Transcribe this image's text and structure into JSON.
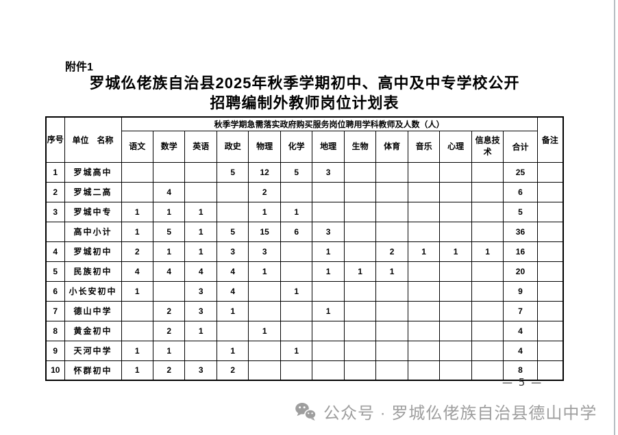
{
  "page": {
    "attachment_label": "附件1",
    "title_line1": "罗城仫佬族自治县2025年秋季学期初中、高中及中专学校公开",
    "title_line2": "招聘编制外教师岗位计划表",
    "page_number": "— 5 —"
  },
  "table": {
    "seq_header": "序号",
    "unit_header": "单位　名称",
    "group_header": "秋季学期急需落实政府购买服务岗位聘用学科教师及人数（人）",
    "subject_headers": [
      "语文",
      "数学",
      "英语",
      "政史",
      "物理",
      "化学",
      "地理",
      "生物",
      "体育",
      "音乐",
      "心理",
      "信息技术"
    ],
    "total_header": "合计",
    "remark_header": "备注",
    "rows": [
      {
        "seq": "1",
        "unit": "罗城高中",
        "values": [
          "",
          "",
          "",
          "5",
          "12",
          "5",
          "3",
          "",
          "",
          "",
          "",
          ""
        ],
        "total": "25",
        "remark": ""
      },
      {
        "seq": "2",
        "unit": "罗城二高",
        "values": [
          "",
          "4",
          "",
          "",
          "2",
          "",
          "",
          "",
          "",
          "",
          "",
          ""
        ],
        "total": "6",
        "remark": ""
      },
      {
        "seq": "3",
        "unit": "罗城中专",
        "values": [
          "1",
          "1",
          "1",
          "",
          "1",
          "1",
          "",
          "",
          "",
          "",
          "",
          ""
        ],
        "total": "5",
        "remark": ""
      },
      {
        "seq": "",
        "unit": "高中小计",
        "values": [
          "1",
          "5",
          "1",
          "5",
          "15",
          "6",
          "3",
          "",
          "",
          "",
          "",
          ""
        ],
        "total": "36",
        "remark": ""
      },
      {
        "seq": "4",
        "unit": "罗城初中",
        "values": [
          "2",
          "1",
          "1",
          "3",
          "3",
          "",
          "1",
          "",
          "2",
          "1",
          "1",
          "1"
        ],
        "total": "16",
        "remark": ""
      },
      {
        "seq": "5",
        "unit": "民族初中",
        "values": [
          "4",
          "4",
          "4",
          "4",
          "1",
          "",
          "1",
          "1",
          "1",
          "",
          "",
          ""
        ],
        "total": "20",
        "remark": ""
      },
      {
        "seq": "6",
        "unit": "小长安初中",
        "values": [
          "1",
          "",
          "3",
          "4",
          "",
          "1",
          "",
          "",
          "",
          "",
          "",
          ""
        ],
        "total": "9",
        "remark": ""
      },
      {
        "seq": "7",
        "unit": "德山中学",
        "values": [
          "",
          "2",
          "3",
          "1",
          "",
          "",
          "1",
          "",
          "",
          "",
          "",
          ""
        ],
        "total": "7",
        "remark": ""
      },
      {
        "seq": "8",
        "unit": "黄金初中",
        "values": [
          "",
          "2",
          "1",
          "",
          "1",
          "",
          "",
          "",
          "",
          "",
          "",
          ""
        ],
        "total": "4",
        "remark": ""
      },
      {
        "seq": "9",
        "unit": "天河中学",
        "values": [
          "1",
          "1",
          "",
          "1",
          "",
          "1",
          "",
          "",
          "",
          "",
          "",
          ""
        ],
        "total": "4",
        "remark": ""
      },
      {
        "seq": "10",
        "unit": "怀群初中",
        "values": [
          "1",
          "2",
          "3",
          "2",
          "",
          "",
          "",
          "",
          "",
          "",
          "",
          ""
        ],
        "total": "8",
        "remark": ""
      }
    ]
  },
  "footer": {
    "wechat_label": "公众号 · 罗城仫佬族自治县德山中学",
    "icon_color": "#9e9e9e"
  }
}
